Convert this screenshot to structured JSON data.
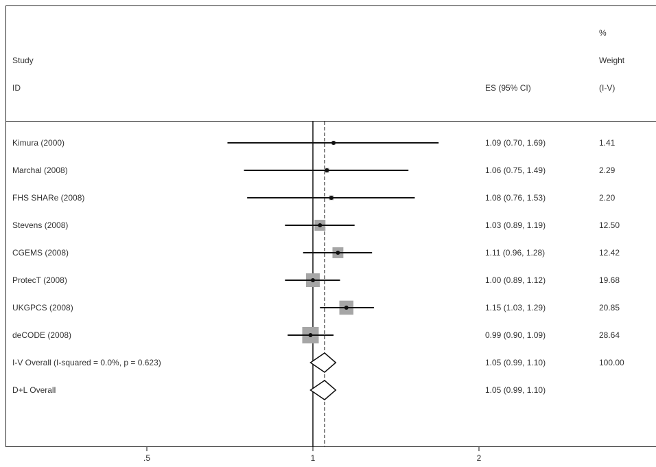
{
  "chart_data": {
    "type": "forest",
    "headers": {
      "study": "Study",
      "id": "ID",
      "es": "ES (95% CI)",
      "weight_pct": "%",
      "weight": "Weight",
      "weight_method": "(I-V)"
    },
    "studies": [
      {
        "label": "Kimura (2000)",
        "es": 1.09,
        "lo": 0.7,
        "hi": 1.69,
        "es_text": "1.09 (0.70, 1.69)",
        "weight": 1.41,
        "weight_text": "1.41"
      },
      {
        "label": "Marchal (2008)",
        "es": 1.06,
        "lo": 0.75,
        "hi": 1.49,
        "es_text": "1.06 (0.75, 1.49)",
        "weight": 2.29,
        "weight_text": "2.29"
      },
      {
        "label": "FHS SHARe (2008)",
        "es": 1.08,
        "lo": 0.76,
        "hi": 1.53,
        "es_text": "1.08 (0.76, 1.53)",
        "weight": 2.2,
        "weight_text": "2.20"
      },
      {
        "label": "Stevens (2008)",
        "es": 1.03,
        "lo": 0.89,
        "hi": 1.19,
        "es_text": "1.03 (0.89, 1.19)",
        "weight": 12.5,
        "weight_text": "12.50"
      },
      {
        "label": "CGEMS (2008)",
        "es": 1.11,
        "lo": 0.96,
        "hi": 1.28,
        "es_text": "1.11 (0.96, 1.28)",
        "weight": 12.42,
        "weight_text": "12.42"
      },
      {
        "label": "ProtecT (2008)",
        "es": 1.0,
        "lo": 0.89,
        "hi": 1.12,
        "es_text": "1.00 (0.89, 1.12)",
        "weight": 19.68,
        "weight_text": "19.68"
      },
      {
        "label": "UKGPCS (2008)",
        "es": 1.15,
        "lo": 1.03,
        "hi": 1.29,
        "es_text": "1.15 (1.03, 1.29)",
        "weight": 20.85,
        "weight_text": "20.85"
      },
      {
        "label": "deCODE (2008)",
        "es": 0.99,
        "lo": 0.9,
        "hi": 1.09,
        "es_text": "0.99 (0.90, 1.09)",
        "weight": 28.64,
        "weight_text": "28.64"
      }
    ],
    "overall": [
      {
        "label": "I-V Overall  (I-squared = 0.0%, p = 0.623)",
        "es": 1.05,
        "lo": 0.99,
        "hi": 1.1,
        "es_text": "1.05 (0.99, 1.10)",
        "weight_text": "100.00"
      },
      {
        "label": "D+L Overall",
        "es": 1.05,
        "lo": 0.99,
        "hi": 1.1,
        "es_text": "1.05 (0.99, 1.10)",
        "weight_text": ""
      }
    ],
    "x_axis": {
      "scale": "log",
      "ticks": [
        0.5,
        1,
        2
      ],
      "tick_labels": [
        ".5",
        "1",
        "2"
      ],
      "null_line": 1,
      "overall_line": 1.05
    },
    "colors": {
      "ci_line": "#111111",
      "weight_box": "#a6a6a6",
      "point": "#111111",
      "overall_line": "#444444"
    }
  }
}
